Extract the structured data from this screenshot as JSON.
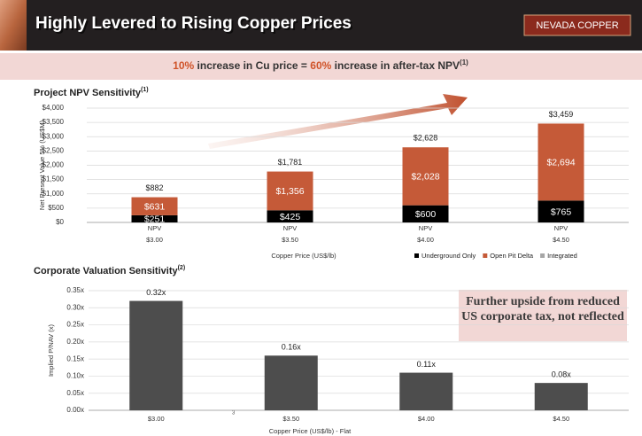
{
  "header": {
    "title": "Highly Levered to Rising Copper Prices",
    "logo": "NEVADA COPPER"
  },
  "banner": {
    "lead": "10%",
    "middle": " increase in Cu price = ",
    "highlight": "60%",
    "tail": " increase in after-tax NPV",
    "note": "(1)"
  },
  "callout": "Further upside from reduced US corporate tax, not reflected",
  "page_number": "3",
  "chart_data": [
    {
      "type": "stacked_bar",
      "title": "Project NPV Sensitivity",
      "title_note": "(1)",
      "y_label": "Net Present Value 5% (US$M)",
      "x_label": "Copper Price (US$/lb)",
      "bar_label": "NPV",
      "categories": [
        "$3.00",
        "$3.50",
        "$4.00",
        "$4.50"
      ],
      "series": [
        {
          "name": "Underground Only",
          "color": "#000000",
          "values": [
            251,
            425,
            600,
            765
          ],
          "value_labels": [
            "$251",
            "$425",
            "$600",
            "$765"
          ]
        },
        {
          "name": "Open Pit Delta",
          "color": "#c55a38",
          "values": [
            631,
            1356,
            2028,
            2694
          ],
          "value_labels": [
            "$631",
            "$1,356",
            "$2,028",
            "$2,694"
          ]
        }
      ],
      "total": {
        "name": "Integrated",
        "color": "#a6a6a6",
        "values": [
          882,
          1781,
          2628,
          3459
        ],
        "value_labels": [
          "$882",
          "$1,781",
          "$2,628",
          "$3,459"
        ]
      },
      "ylim": [
        0,
        4000
      ],
      "yticks": [
        {
          "value": 0,
          "label": "$0"
        },
        {
          "value": 500,
          "label": "$500"
        },
        {
          "value": 1000,
          "label": "$1,000"
        },
        {
          "value": 1500,
          "label": "$1,500"
        },
        {
          "value": 2000,
          "label": "$2,000"
        },
        {
          "value": 2500,
          "label": "$2,500"
        },
        {
          "value": 3000,
          "label": "$3,000"
        },
        {
          "value": 3500,
          "label": "$3,500"
        },
        {
          "value": 4000,
          "label": "$4,000"
        }
      ],
      "grid": true,
      "legend": "bottom-right"
    },
    {
      "type": "bar",
      "title": "Corporate Valuation Sensitivity",
      "title_note": "(2)",
      "y_label": "Implied P/NAV (x)",
      "x_label": "Copper Price (US$/lb) - Flat",
      "categories": [
        "$3.00",
        "$3.50",
        "$4.00",
        "$4.50"
      ],
      "values": [
        0.32,
        0.16,
        0.11,
        0.08
      ],
      "value_labels": [
        "0.32x",
        "0.16x",
        "0.11x",
        "0.08x"
      ],
      "color": "#4d4d4d",
      "ylim": [
        0,
        0.35
      ],
      "yticks": [
        {
          "value": 0,
          "label": "0.00x"
        },
        {
          "value": 0.05,
          "label": "0.05x"
        },
        {
          "value": 0.1,
          "label": "0.10x"
        },
        {
          "value": 0.15,
          "label": "0.15x"
        },
        {
          "value": 0.2,
          "label": "0.20x"
        },
        {
          "value": 0.25,
          "label": "0.25x"
        },
        {
          "value": 0.3,
          "label": "0.30x"
        },
        {
          "value": 0.35,
          "label": "0.35x"
        }
      ],
      "grid": true
    }
  ]
}
